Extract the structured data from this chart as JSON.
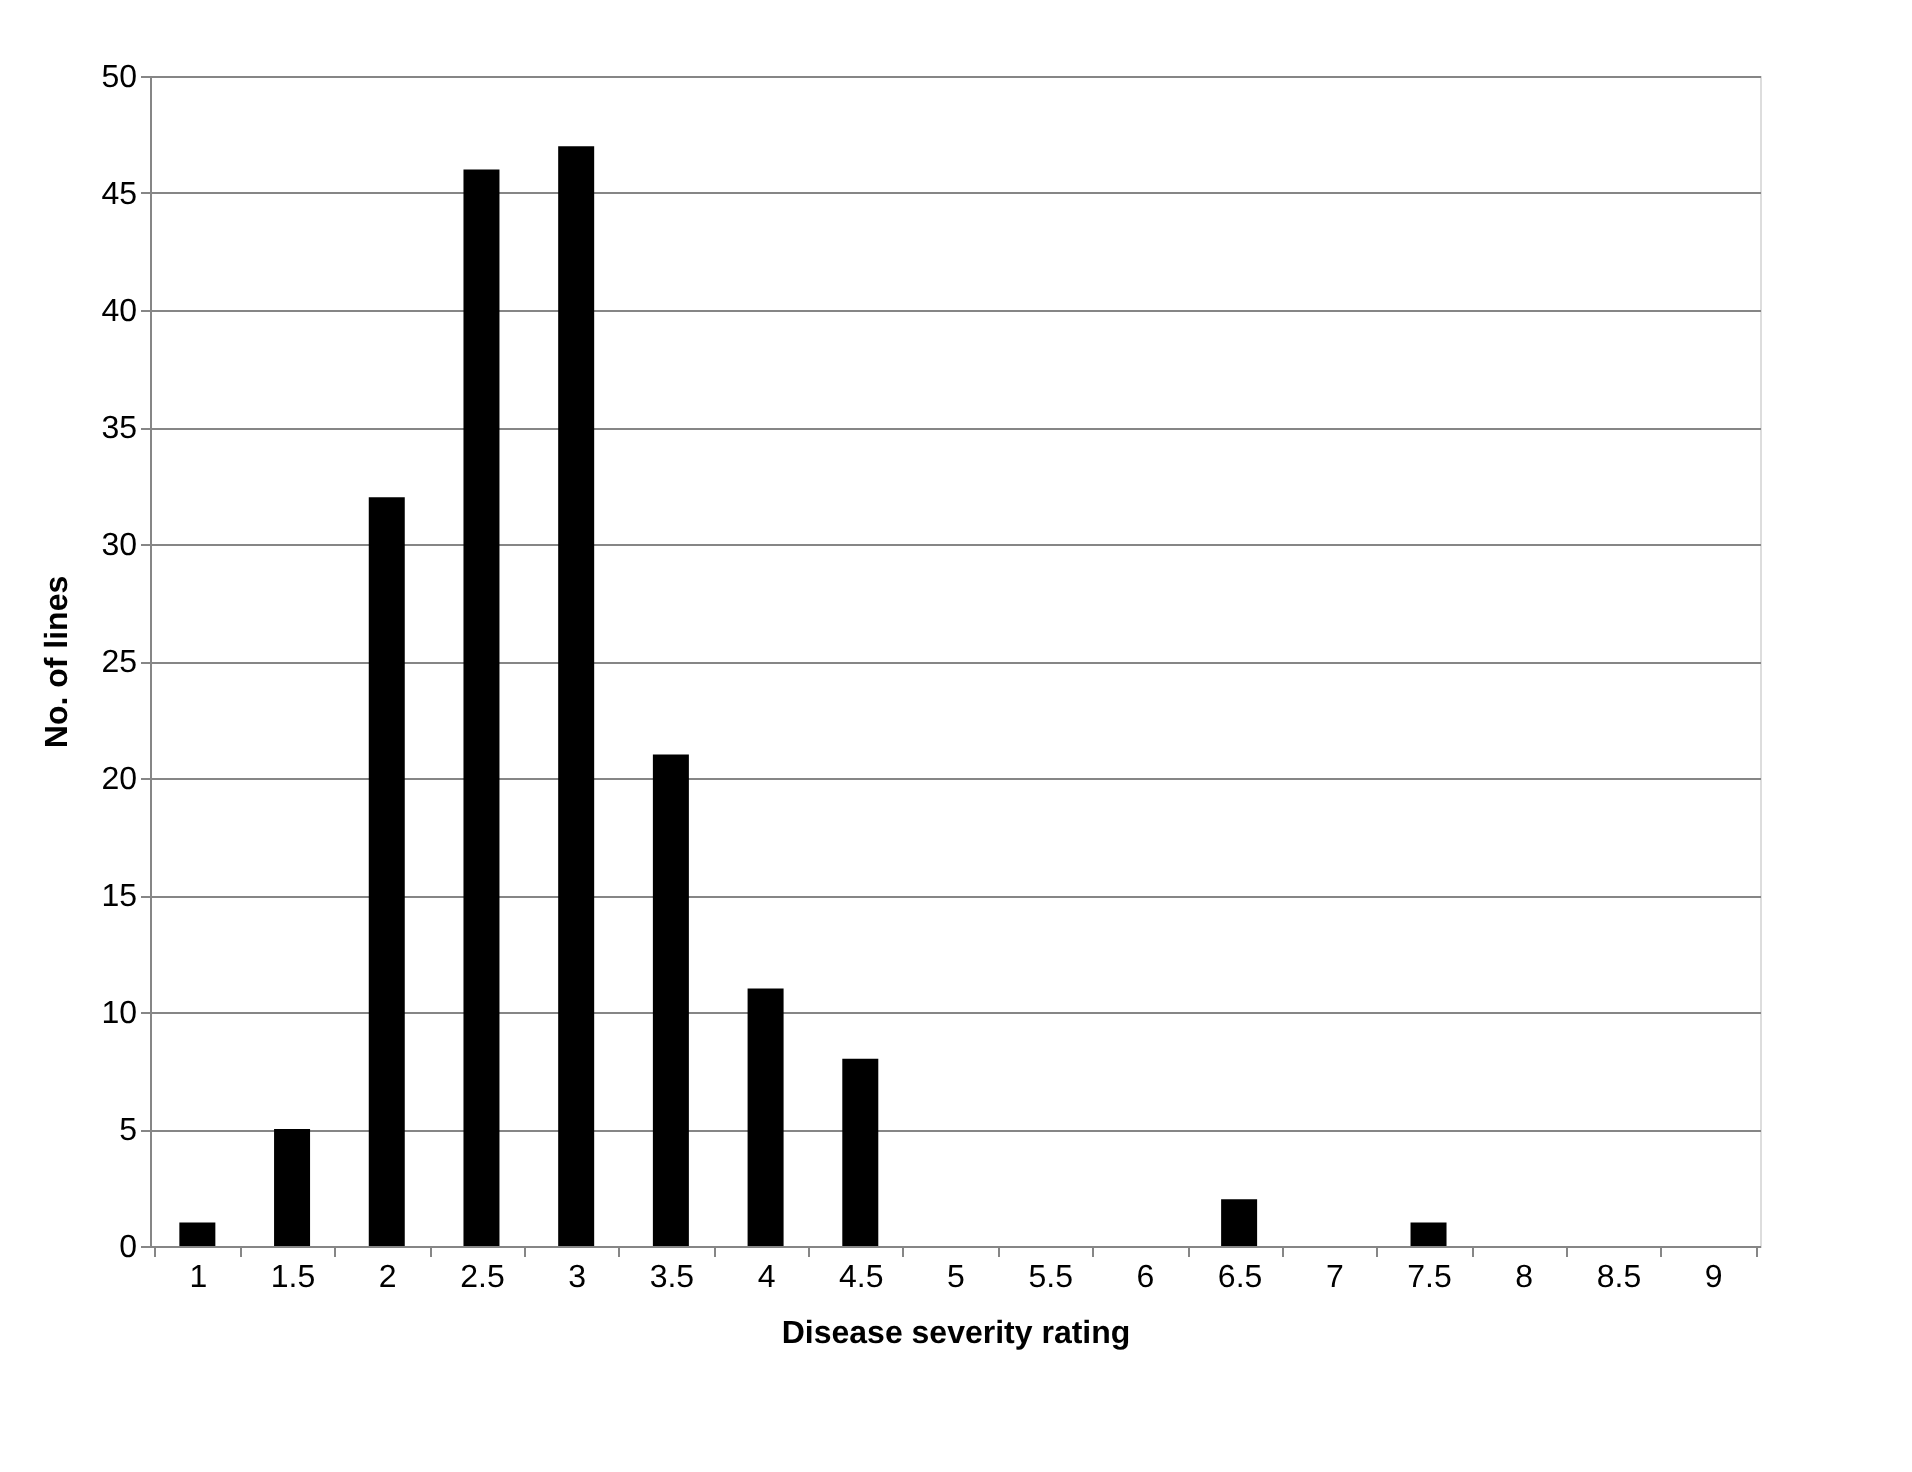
{
  "chart_data": {
    "type": "bar",
    "xlabel": "Disease severity rating",
    "ylabel": "No. of lines",
    "categories": [
      "1",
      "1.5",
      "2",
      "2.5",
      "3",
      "3.5",
      "4",
      "4.5",
      "5",
      "5.5",
      "6",
      "6.5",
      "7",
      "7.5",
      "8",
      "8.5",
      "9"
    ],
    "values": [
      1,
      5,
      32,
      46,
      47,
      21,
      11,
      8,
      0,
      0,
      0,
      2,
      0,
      1,
      0,
      0,
      0
    ],
    "color": "#000000",
    "ylim": [
      0,
      50
    ],
    "yticks": [
      0,
      5,
      10,
      15,
      20,
      25,
      30,
      35,
      40,
      45,
      50
    ],
    "grid": "y"
  }
}
